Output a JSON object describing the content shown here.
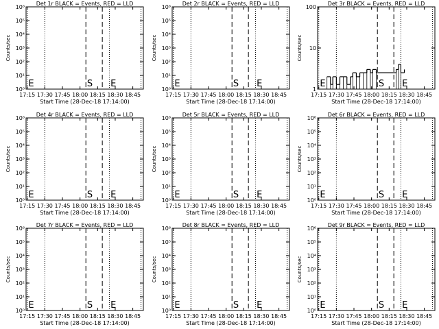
{
  "xlabel": "Start Time (28-Dec-18 17:14:00)",
  "ylabel": "Counts/sec",
  "line_color": "#000000",
  "x_tick_labels": [
    "17:15",
    "17:30",
    "17:45",
    "18:00",
    "18:15",
    "18:30",
    "18:45"
  ],
  "chart_data": [
    {
      "type": "line",
      "title": "Det 1r BLACK = Events, RED = LLD",
      "yscale": "log",
      "ylim": [
        1,
        1000000
      ],
      "yticks": [
        "10⁰",
        "10¹",
        "10²",
        "10³",
        "10⁴",
        "10⁵",
        "10⁶"
      ],
      "xlim": [
        "17:14",
        "18:54"
      ],
      "dotted_lines": [
        "17:15",
        "17:30",
        "18:25",
        "18:52"
      ],
      "dashed_lines": [
        "18:05",
        "18:19"
      ],
      "markers": [
        {
          "text": "E",
          "x": "17:16"
        },
        {
          "text": "S",
          "x": "18:06"
        },
        {
          "text": "E",
          "x": "18:26"
        }
      ],
      "series": []
    },
    {
      "type": "line",
      "title": "Det 2r BLACK = Events, RED = LLD",
      "yscale": "log",
      "ylim": [
        1,
        1000000
      ],
      "yticks": [
        "10⁰",
        "10¹",
        "10²",
        "10³",
        "10⁴",
        "10⁵",
        "10⁶"
      ],
      "xlim": [
        "17:14",
        "18:54"
      ],
      "dotted_lines": [
        "17:15",
        "17:30",
        "18:25",
        "18:52"
      ],
      "dashed_lines": [
        "18:05",
        "18:19"
      ],
      "markers": [
        {
          "text": "E",
          "x": "17:16"
        },
        {
          "text": "S",
          "x": "18:06"
        },
        {
          "text": "E",
          "x": "18:26"
        }
      ],
      "series": []
    },
    {
      "type": "line",
      "title": "Det 3r BLACK = Events, RED = LLD",
      "yscale": "log",
      "ylim": [
        1,
        100
      ],
      "yticks": [
        "1",
        "10",
        "100"
      ],
      "xlim": [
        "17:14",
        "18:54"
      ],
      "dotted_lines": [
        "17:15",
        "17:30",
        "18:25",
        "18:52"
      ],
      "dashed_lines": [
        "18:05",
        "18:19"
      ],
      "markers": [
        {
          "text": "E",
          "x": "17:16"
        },
        {
          "text": "S",
          "x": "18:06"
        },
        {
          "text": "E",
          "x": "18:26"
        }
      ],
      "series": [
        {
          "x": [
            "17:22",
            "17:25",
            "17:27",
            "17:30",
            "17:33",
            "17:36",
            "17:39",
            "17:42",
            "17:44",
            "17:47",
            "17:50",
            "17:53",
            "17:56",
            "17:59",
            "18:01",
            "18:04",
            "18:21",
            "18:23",
            "18:25",
            "18:28"
          ],
          "y": [
            2,
            1.3,
            2,
            1.3,
            2,
            2,
            1.3,
            2,
            2.5,
            2,
            2.5,
            2.5,
            3,
            2.5,
            3,
            2.5,
            3,
            4,
            2.5,
            3
          ]
        }
      ]
    },
    {
      "type": "line",
      "title": "Det 4r BLACK = Events, RED = LLD",
      "yscale": "log",
      "ylim": [
        1,
        1000000
      ],
      "yticks": [
        "10⁰",
        "10¹",
        "10²",
        "10³",
        "10⁴",
        "10⁵",
        "10⁶"
      ],
      "xlim": [
        "17:14",
        "18:54"
      ],
      "dotted_lines": [
        "17:15",
        "17:30",
        "18:25",
        "18:52"
      ],
      "dashed_lines": [
        "18:05",
        "18:19"
      ],
      "markers": [
        {
          "text": "E",
          "x": "17:16"
        },
        {
          "text": "S",
          "x": "18:06"
        },
        {
          "text": "E",
          "x": "18:26"
        }
      ],
      "series": []
    },
    {
      "type": "line",
      "title": "Det 5r BLACK = Events, RED = LLD",
      "yscale": "log",
      "ylim": [
        1,
        1000000
      ],
      "yticks": [
        "10⁰",
        "10¹",
        "10²",
        "10³",
        "10⁴",
        "10⁵",
        "10⁶"
      ],
      "xlim": [
        "17:14",
        "18:54"
      ],
      "dotted_lines": [
        "17:15",
        "17:30",
        "18:25",
        "18:52"
      ],
      "dashed_lines": [
        "18:05",
        "18:19"
      ],
      "markers": [
        {
          "text": "E",
          "x": "17:16"
        },
        {
          "text": "S",
          "x": "18:06"
        },
        {
          "text": "E",
          "x": "18:26"
        }
      ],
      "series": []
    },
    {
      "type": "line",
      "title": "Det 6r BLACK = Events, RED = LLD",
      "yscale": "log",
      "ylim": [
        1,
        1000000
      ],
      "yticks": [
        "10⁰",
        "10¹",
        "10²",
        "10³",
        "10⁴",
        "10⁵",
        "10⁶"
      ],
      "xlim": [
        "17:14",
        "18:54"
      ],
      "dotted_lines": [
        "17:15",
        "17:30",
        "18:25",
        "18:52"
      ],
      "dashed_lines": [
        "18:05",
        "18:19"
      ],
      "markers": [
        {
          "text": "E",
          "x": "17:16"
        },
        {
          "text": "S",
          "x": "18:06"
        },
        {
          "text": "E",
          "x": "18:26"
        }
      ],
      "series": []
    },
    {
      "type": "line",
      "title": "Det 7r BLACK = Events, RED = LLD",
      "yscale": "log",
      "ylim": [
        1,
        1000000
      ],
      "yticks": [
        "10⁰",
        "10¹",
        "10²",
        "10³",
        "10⁴",
        "10⁵",
        "10⁶"
      ],
      "xlim": [
        "17:14",
        "18:54"
      ],
      "dotted_lines": [
        "17:15",
        "17:30",
        "18:25",
        "18:52"
      ],
      "dashed_lines": [
        "18:05",
        "18:19"
      ],
      "markers": [
        {
          "text": "E",
          "x": "17:16"
        },
        {
          "text": "S",
          "x": "18:06"
        },
        {
          "text": "E",
          "x": "18:26"
        }
      ],
      "series": []
    },
    {
      "type": "line",
      "title": "Det 8r BLACK = Events, RED = LLD",
      "yscale": "log",
      "ylim": [
        1,
        1000000
      ],
      "yticks": [
        "10⁰",
        "10¹",
        "10²",
        "10³",
        "10⁴",
        "10⁵",
        "10⁶"
      ],
      "xlim": [
        "17:14",
        "18:54"
      ],
      "dotted_lines": [
        "17:15",
        "17:30",
        "18:25",
        "18:52"
      ],
      "dashed_lines": [
        "18:05",
        "18:19"
      ],
      "markers": [
        {
          "text": "E",
          "x": "17:16"
        },
        {
          "text": "S",
          "x": "18:06"
        },
        {
          "text": "E",
          "x": "18:26"
        }
      ],
      "series": []
    },
    {
      "type": "line",
      "title": "Det 9r BLACK = Events, RED = LLD",
      "yscale": "log",
      "ylim": [
        1,
        1000000
      ],
      "yticks": [
        "10⁰",
        "10¹",
        "10²",
        "10³",
        "10⁴",
        "10⁵",
        "10⁶"
      ],
      "xlim": [
        "17:14",
        "18:54"
      ],
      "dotted_lines": [
        "17:15",
        "17:30",
        "18:25",
        "18:52"
      ],
      "dashed_lines": [
        "18:05",
        "18:19"
      ],
      "markers": [
        {
          "text": "E",
          "x": "17:16"
        },
        {
          "text": "S",
          "x": "18:06"
        },
        {
          "text": "E",
          "x": "18:26"
        }
      ],
      "series": []
    }
  ]
}
